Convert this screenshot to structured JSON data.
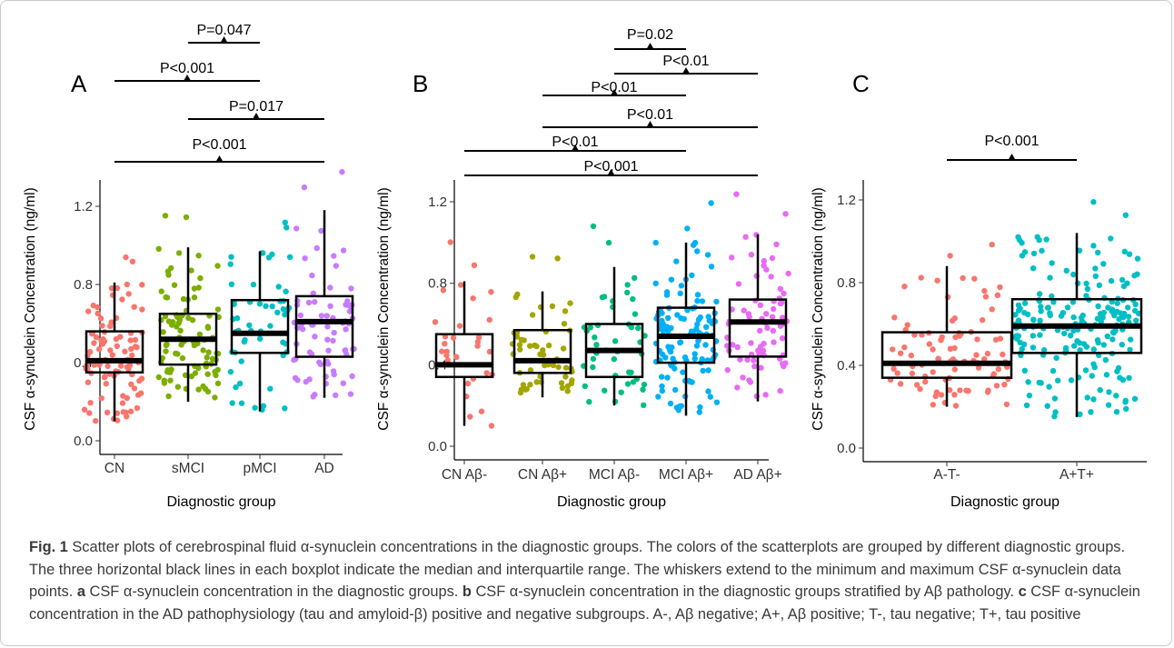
{
  "chart_data": [
    {
      "panel": "A",
      "type": "box+scatter",
      "xlabel": "Diagnostic group",
      "ylabel": "CSF α-synuclein Concentration  (ng/ml)",
      "ylim": [
        0,
        1.25
      ],
      "yticks": [
        "0.0",
        "0.4",
        "0.8",
        "1.2"
      ],
      "categories": [
        "CN",
        "sMCI",
        "pMCI",
        "AD"
      ],
      "colors": [
        "#f8766d",
        "#7cae00",
        "#00bfc4",
        "#c77cff"
      ],
      "boxes": [
        {
          "min": 0.1,
          "q1": 0.35,
          "median": 0.41,
          "q3": 0.56,
          "max": 0.81
        },
        {
          "min": 0.2,
          "q1": 0.39,
          "median": 0.52,
          "q3": 0.65,
          "max": 0.99
        },
        {
          "min": 0.15,
          "q1": 0.45,
          "median": 0.55,
          "q3": 0.72,
          "max": 0.97
        },
        {
          "min": 0.22,
          "q1": 0.43,
          "median": 0.61,
          "q3": 0.74,
          "max": 1.18
        }
      ],
      "point_counts": [
        95,
        95,
        55,
        75
      ],
      "comparisons": [
        {
          "label": "P=0.047",
          "from": 1,
          "to": 2
        },
        {
          "label": "P<0.001",
          "from": 0,
          "to": 2
        },
        {
          "label": "P=0.017",
          "from": 1,
          "to": 3
        },
        {
          "label": "P<0.001",
          "from": 0,
          "to": 3
        }
      ]
    },
    {
      "panel": "B",
      "type": "box+scatter",
      "xlabel": "Diagnostic group",
      "ylabel": "CSF α-synuclein Concentration  (ng/ml)",
      "ylim": [
        0,
        1.25
      ],
      "yticks": [
        "0.0",
        "0.4",
        "0.8",
        "1.2"
      ],
      "categories": [
        "CN Aβ-",
        "CN Aβ+",
        "MCI Aβ-",
        "MCI Aβ+",
        "AD Aβ+"
      ],
      "colors": [
        "#f8766d",
        "#a3a500",
        "#00bf7d",
        "#00b0f6",
        "#e76bf3"
      ],
      "boxes": [
        {
          "min": 0.1,
          "q1": 0.34,
          "median": 0.4,
          "q3": 0.55,
          "max": 0.81
        },
        {
          "min": 0.24,
          "q1": 0.36,
          "median": 0.42,
          "q3": 0.57,
          "max": 0.76
        },
        {
          "min": 0.2,
          "q1": 0.34,
          "median": 0.47,
          "q3": 0.6,
          "max": 0.88
        },
        {
          "min": 0.15,
          "q1": 0.41,
          "median": 0.54,
          "q3": 0.68,
          "max": 1.0
        },
        {
          "min": 0.22,
          "q1": 0.44,
          "median": 0.61,
          "q3": 0.72,
          "max": 1.04
        }
      ],
      "point_counts": [
        30,
        55,
        45,
        120,
        75
      ],
      "comparisons": [
        {
          "label": "P=0.02",
          "from": 2,
          "to": 3
        },
        {
          "label": "P<0.01",
          "from": 2,
          "to": 4
        },
        {
          "label": "P<0.01",
          "from": 1,
          "to": 3
        },
        {
          "label": "P<0.01",
          "from": 1,
          "to": 4
        },
        {
          "label": "P<0.01",
          "from": 0,
          "to": 3
        },
        {
          "label": "P<0.001",
          "from": 0,
          "to": 4
        }
      ]
    },
    {
      "panel": "C",
      "type": "box+scatter",
      "xlabel": "Diagnostic group",
      "ylabel": "CSF α-synuclein Concentration  (ng/ml)",
      "ylim": [
        0,
        1.25
      ],
      "yticks": [
        "0.0",
        "0.4",
        "0.8",
        "1.2"
      ],
      "categories": [
        "A-T-",
        "A+T+"
      ],
      "colors": [
        "#f8766d",
        "#00bfc4"
      ],
      "boxes": [
        {
          "min": 0.2,
          "q1": 0.34,
          "median": 0.41,
          "q3": 0.56,
          "max": 0.88
        },
        {
          "min": 0.15,
          "q1": 0.46,
          "median": 0.59,
          "q3": 0.72,
          "max": 1.04
        }
      ],
      "point_counts": [
        90,
        200
      ],
      "comparisons": [
        {
          "label": "P<0.001",
          "from": 0,
          "to": 1
        }
      ]
    }
  ],
  "caption": {
    "label": "Fig. 1",
    "segments": [
      {
        "b": "",
        "t": " Scatter plots of cerebrospinal fluid α-synuclein concentrations in the diagnostic groups. The colors of the scatterplots are grouped by different diagnostic groups. The three horizontal black lines in each boxplot indicate the median and interquartile range. The whiskers extend to the minimum and maximum CSF α-synuclein data points. "
      },
      {
        "b": "a",
        "t": " CSF α-synuclein concentration in the diagnostic groups. "
      },
      {
        "b": "b",
        "t": " CSF α-synuclein concentration in the diagnostic groups stratified by Aβ pathology. "
      },
      {
        "b": "c",
        "t": " CSF α-synuclein concentration in the AD pathophysiology (tau and amyloid-β) positive and negative subgroups. A-, Aβ negative; A+, Aβ positive; T-, tau negative; T+, tau positive"
      }
    ]
  }
}
